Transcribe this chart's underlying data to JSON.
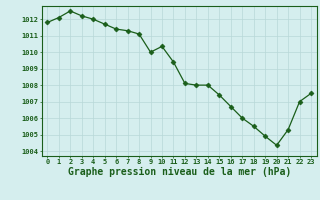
{
  "x": [
    0,
    1,
    2,
    3,
    4,
    5,
    6,
    7,
    8,
    9,
    10,
    11,
    12,
    13,
    14,
    15,
    16,
    17,
    18,
    19,
    20,
    21,
    22,
    23
  ],
  "y": [
    1011.8,
    1012.1,
    1012.5,
    1012.2,
    1012.0,
    1011.7,
    1011.4,
    1011.3,
    1011.1,
    1010.0,
    1010.35,
    1009.4,
    1008.1,
    1008.0,
    1008.0,
    1007.4,
    1006.7,
    1006.0,
    1005.5,
    1004.9,
    1004.35,
    1005.3,
    1007.0,
    1007.5
  ],
  "line_color": "#1a5e1a",
  "marker": "D",
  "marker_size": 2.5,
  "bg_color": "#d5eeee",
  "grid_color": "#b8d8d8",
  "xlabel": "Graphe pression niveau de la mer (hPa)",
  "xlabel_fontsize": 7.0,
  "ylabel_ticks": [
    1004,
    1005,
    1006,
    1007,
    1008,
    1009,
    1010,
    1011,
    1012
  ],
  "xlim": [
    -0.5,
    23.5
  ],
  "ylim": [
    1003.7,
    1012.8
  ],
  "tick_color": "#1a5e1a",
  "axis_color": "#1a5e1a",
  "tick_fontsize": 5.0,
  "lw": 0.9
}
